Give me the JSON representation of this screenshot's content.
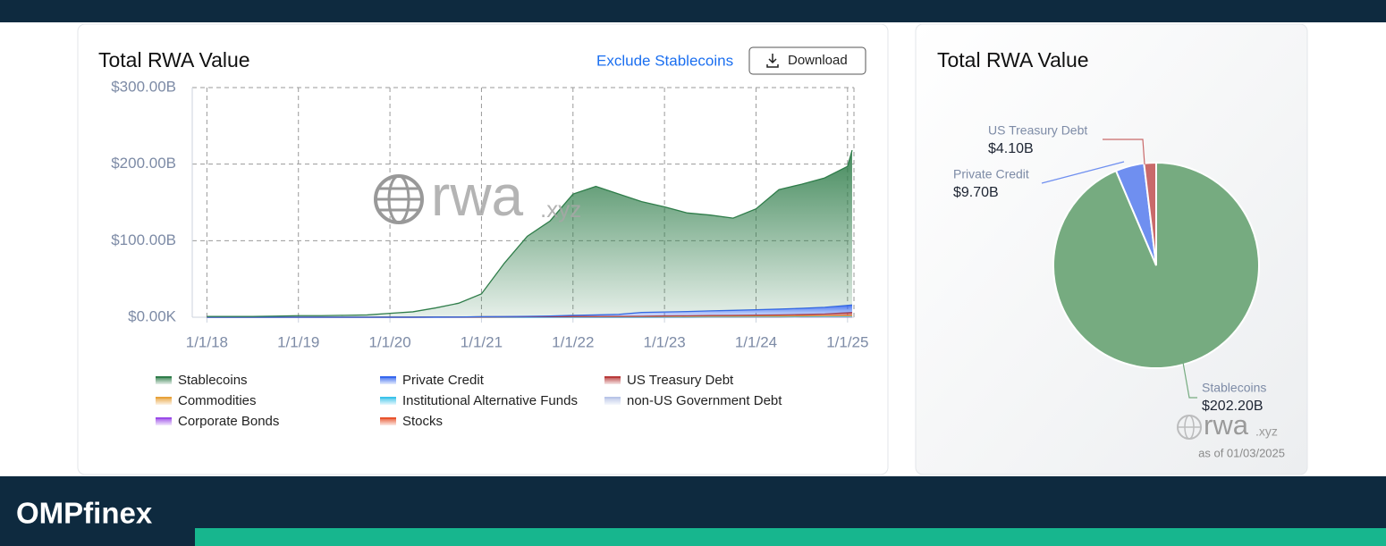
{
  "ui": {
    "exclude_button": "Exclude Stablecoins",
    "download_button": "Download",
    "watermark": "rwa",
    "watermark_suffix": ".xyz",
    "pie_watermark": "rwa",
    "pie_watermark_suffix": ".xyz",
    "as_of": "as of 01/03/2025",
    "brand": "OMPfinex"
  },
  "chart_data": [
    {
      "type": "area",
      "title": "Total RWA Value",
      "stacked": true,
      "grid": true,
      "x": [
        2018,
        2018.25,
        2018.5,
        2018.75,
        2019,
        2019.25,
        2019.5,
        2019.75,
        2020,
        2020.25,
        2020.5,
        2020.75,
        2021,
        2021.25,
        2021.5,
        2021.75,
        2022,
        2022.25,
        2022.5,
        2022.75,
        2023,
        2023.25,
        2023.5,
        2023.75,
        2024,
        2024.25,
        2024.5,
        2024.75,
        2025,
        2025.05
      ],
      "xlim": [
        2017.84,
        2025.07
      ],
      "xticks": [
        {
          "value": 2018,
          "label": "1/1/18"
        },
        {
          "value": 2019,
          "label": "1/1/19"
        },
        {
          "value": 2020,
          "label": "1/1/20"
        },
        {
          "value": 2021,
          "label": "1/1/21"
        },
        {
          "value": 2022,
          "label": "1/1/22"
        },
        {
          "value": 2023,
          "label": "1/1/23"
        },
        {
          "value": 2024,
          "label": "1/1/24"
        },
        {
          "value": 2025,
          "label": "1/1/25"
        }
      ],
      "ylim": [
        0,
        300
      ],
      "yticks": [
        {
          "value": 0,
          "label": "$0.00K"
        },
        {
          "value": 100,
          "label": "$100.00B"
        },
        {
          "value": 200,
          "label": "$200.00B"
        },
        {
          "value": 300,
          "label": "$300.00B"
        }
      ],
      "series": [
        {
          "name": "Stablecoins",
          "color": "#2f7d4a",
          "values": [
            1,
            1,
            1,
            1.5,
            2,
            2,
            2.5,
            3,
            5,
            7,
            12,
            18,
            29.8,
            69.7,
            104.5,
            124.2,
            158.4,
            167.9,
            157.3,
            144.7,
            137.3,
            128.8,
            125.1,
            120.5,
            131.8,
            156,
            162.2,
            169,
            181.7,
            202.2
          ]
        },
        {
          "name": "Private Credit",
          "color": "#3567ee",
          "values": [
            0,
            0,
            0,
            0,
            0,
            0,
            0,
            0,
            0,
            0,
            0,
            0,
            0.2,
            0.3,
            0.5,
            0.8,
            1.5,
            2,
            2.5,
            5,
            5.2,
            5.5,
            6,
            6.5,
            7,
            7.5,
            8,
            8.8,
            9.5,
            9.7
          ]
        },
        {
          "name": "US Treasury Debt",
          "color": "#b83a3a",
          "values": [
            0,
            0,
            0,
            0,
            0,
            0,
            0,
            0,
            0,
            0,
            0,
            0,
            0,
            0,
            0,
            0,
            0.1,
            0.1,
            0.2,
            0.3,
            0.5,
            0.7,
            0.9,
            1,
            1.2,
            1.5,
            1.8,
            2.2,
            3.8,
            4.1
          ]
        },
        {
          "name": "Commodities",
          "color": "#e8a23a",
          "values": [
            0,
            0,
            0,
            0,
            0,
            0,
            0,
            0,
            0.1,
            0.1,
            0.2,
            0.3,
            0.5,
            0.6,
            0.7,
            0.8,
            0.9,
            0.9,
            0.9,
            0.9,
            1,
            1,
            1,
            1,
            1,
            1,
            1,
            1,
            1,
            1
          ]
        },
        {
          "name": "Institutional Alternative Funds",
          "color": "#3cc3ea",
          "values": [
            0,
            0,
            0,
            0,
            0,
            0,
            0,
            0,
            0,
            0,
            0,
            0,
            0,
            0,
            0,
            0,
            0,
            0,
            0,
            0,
            0.1,
            0.1,
            0.2,
            0.2,
            0.3,
            0.3,
            0.4,
            0.5,
            0.5,
            0.5
          ]
        },
        {
          "name": "non-US Government Debt",
          "color": "#b9c5e8",
          "values": [
            0,
            0,
            0,
            0,
            0,
            0,
            0,
            0,
            0,
            0,
            0,
            0,
            0,
            0,
            0,
            0,
            0,
            0,
            0,
            0,
            0,
            0,
            0.1,
            0.1,
            0.1,
            0.1,
            0.1,
            0.1,
            0.1,
            0.1
          ]
        },
        {
          "name": "Corporate Bonds",
          "color": "#9a4ae8",
          "values": [
            0,
            0,
            0,
            0,
            0,
            0,
            0,
            0,
            0,
            0,
            0,
            0,
            0,
            0,
            0,
            0,
            0,
            0,
            0.1,
            0.1,
            0.1,
            0.1,
            0.1,
            0.1,
            0.1,
            0.1,
            0.1,
            0.1,
            0.1,
            0.1
          ]
        },
        {
          "name": "Stocks",
          "color": "#e8532c",
          "values": [
            0,
            0,
            0,
            0,
            0,
            0,
            0,
            0,
            0,
            0,
            0,
            0,
            0,
            0,
            0,
            0,
            0,
            0,
            0,
            0,
            0,
            0,
            0.05,
            0.05,
            0.1,
            0.1,
            0.2,
            0.3,
            0.4,
            0.5
          ]
        }
      ]
    },
    {
      "type": "pie",
      "title": "Total RWA Value",
      "categories": [
        "Stablecoins",
        "Private Credit",
        "US Treasury Debt"
      ],
      "values": [
        202.2,
        9.7,
        4.1
      ],
      "value_labels": [
        "$202.20B",
        "$9.70B",
        "$4.10B"
      ],
      "colors": [
        "#76ab80",
        "#6f8ff0",
        "#c96a6a"
      ]
    }
  ]
}
